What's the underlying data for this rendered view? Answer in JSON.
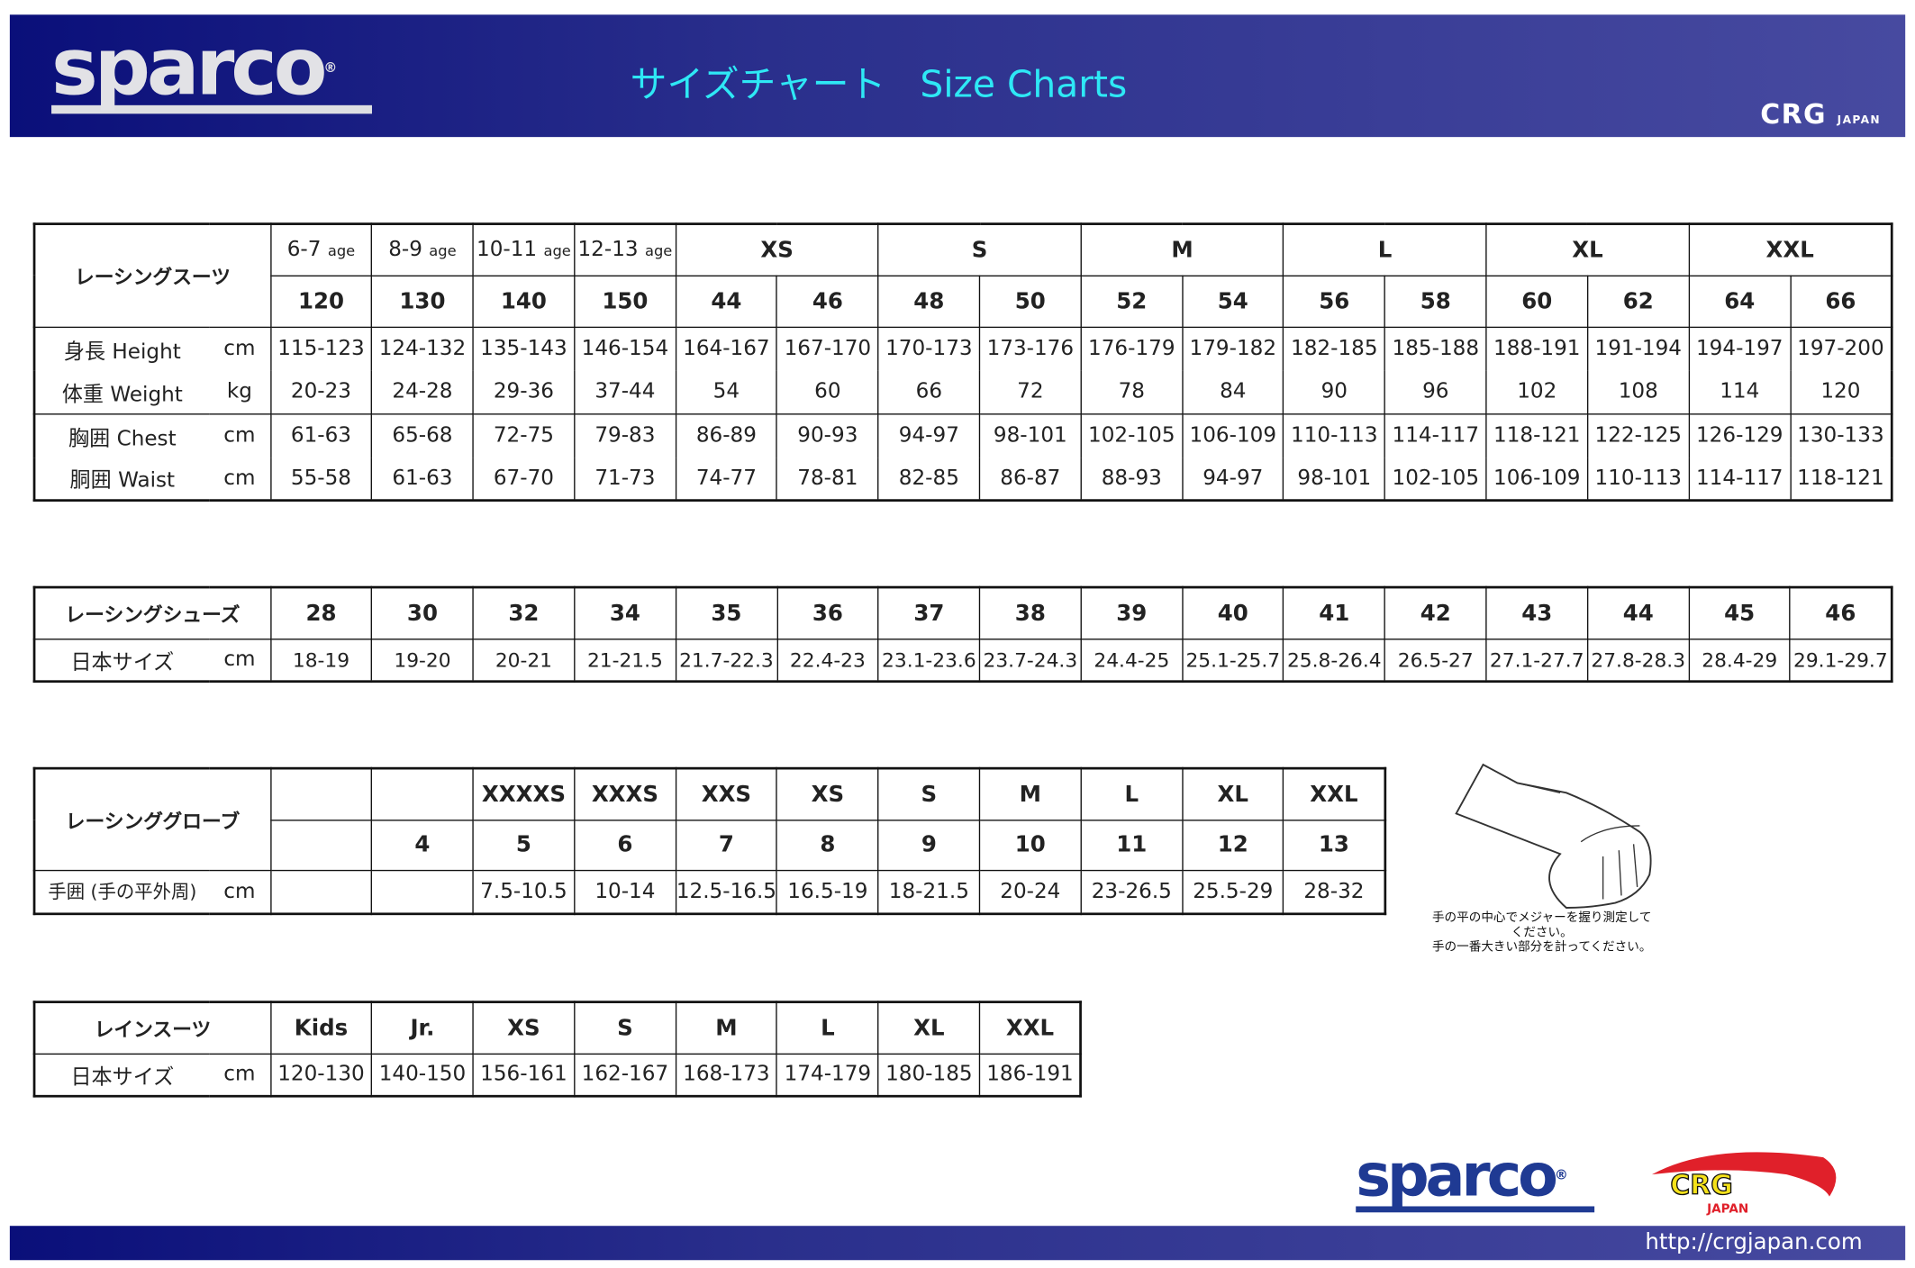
{
  "header": {
    "logo": "sparco",
    "title_jp": "サイズチャート",
    "title_en": "Size Charts",
    "crg_logo": "CRG",
    "crg_sub": "JAPAN"
  },
  "suits": {
    "label": "レーシングスーツ",
    "groups": [
      "XS",
      "S",
      "M",
      "L",
      "XL",
      "XXL"
    ],
    "ages": [
      {
        "v": "6-7",
        "u": "age"
      },
      {
        "v": "8-9",
        "u": "age"
      },
      {
        "v": "10-11",
        "u": "age"
      },
      {
        "v": "12-13",
        "u": "age"
      }
    ],
    "sizes": [
      "120",
      "130",
      "140",
      "150",
      "44",
      "46",
      "48",
      "50",
      "52",
      "54",
      "56",
      "58",
      "60",
      "62",
      "64",
      "66"
    ],
    "rows": [
      {
        "label": "身長 Height",
        "unit": "cm",
        "values": [
          "115-123",
          "124-132",
          "135-143",
          "146-154",
          "164-167",
          "167-170",
          "170-173",
          "173-176",
          "176-179",
          "179-182",
          "182-185",
          "185-188",
          "188-191",
          "191-194",
          "194-197",
          "197-200"
        ]
      },
      {
        "label": "体重 Weight",
        "unit": "kg",
        "values": [
          "20-23",
          "24-28",
          "29-36",
          "37-44",
          "54",
          "60",
          "66",
          "72",
          "78",
          "84",
          "90",
          "96",
          "102",
          "108",
          "114",
          "120"
        ]
      },
      {
        "label": "胸囲 Chest",
        "unit": "cm",
        "values": [
          "61-63",
          "65-68",
          "72-75",
          "79-83",
          "86-89",
          "90-93",
          "94-97",
          "98-101",
          "102-105",
          "106-109",
          "110-113",
          "114-117",
          "118-121",
          "122-125",
          "126-129",
          "130-133"
        ]
      },
      {
        "label": "胴囲 Waist",
        "unit": "cm",
        "values": [
          "55-58",
          "61-63",
          "67-70",
          "71-73",
          "74-77",
          "78-81",
          "82-85",
          "86-87",
          "88-93",
          "94-97",
          "98-101",
          "102-105",
          "106-109",
          "110-113",
          "114-117",
          "118-121"
        ]
      }
    ]
  },
  "shoes": {
    "label": "レーシングシューズ",
    "sizes": [
      "28",
      "30",
      "32",
      "34",
      "35",
      "36",
      "37",
      "38",
      "39",
      "40",
      "41",
      "42",
      "43",
      "44",
      "45",
      "46"
    ],
    "row": {
      "label": "日本サイズ",
      "unit": "cm",
      "values": [
        "18-19",
        "19-20",
        "20-21",
        "21-21.5",
        "21.7-22.3",
        "22.4-23",
        "23.1-23.6",
        "23.7-24.3",
        "24.4-25",
        "25.1-25.7",
        "25.8-26.4",
        "26.5-27",
        "27.1-27.7",
        "27.8-28.3",
        "28.4-29",
        "29.1-29.7"
      ]
    }
  },
  "gloves": {
    "label": "レーシンググローブ",
    "letters": [
      "",
      "",
      "XXXXS",
      "XXXS",
      "XXS",
      "XS",
      "S",
      "M",
      "L",
      "XL",
      "XXL"
    ],
    "sizes": [
      "",
      "4",
      "5",
      "6",
      "7",
      "8",
      "9",
      "10",
      "11",
      "12",
      "13"
    ],
    "row": {
      "label": "手囲 (手の平外周)",
      "unit": "cm",
      "values": [
        "",
        "",
        "7.5-10.5",
        "10-14",
        "12.5-16.5",
        "16.5-19",
        "18-21.5",
        "20-24",
        "23-26.5",
        "25.5-29",
        "28-32"
      ]
    },
    "note_1": "手の平の中心でメジャーを握り測定してください。",
    "note_2": "手の一番大きい部分を計ってください。"
  },
  "rainsuit": {
    "label": "レインスーツ",
    "sizes": [
      "Kids",
      "Jr.",
      "XS",
      "S",
      "M",
      "L",
      "XL",
      "XXL"
    ],
    "row": {
      "label": "日本サイズ",
      "unit": "cm",
      "values": [
        "120-130",
        "140-150",
        "156-161",
        "162-167",
        "168-173",
        "174-179",
        "180-185",
        "186-191"
      ]
    }
  },
  "footer": {
    "sparco_logo": "sparco",
    "crg_logo": "CRG",
    "crg_sub": "JAPAN",
    "url": "http://crgjapan.com"
  },
  "colors": {
    "banner_start": "#0a0f7a",
    "banner_end": "#474aa0",
    "title": "#2ee8f5",
    "sparco_blue": "#1f3a93",
    "crg_red": "#e0202a",
    "crg_yellow": "#f5e21a"
  }
}
